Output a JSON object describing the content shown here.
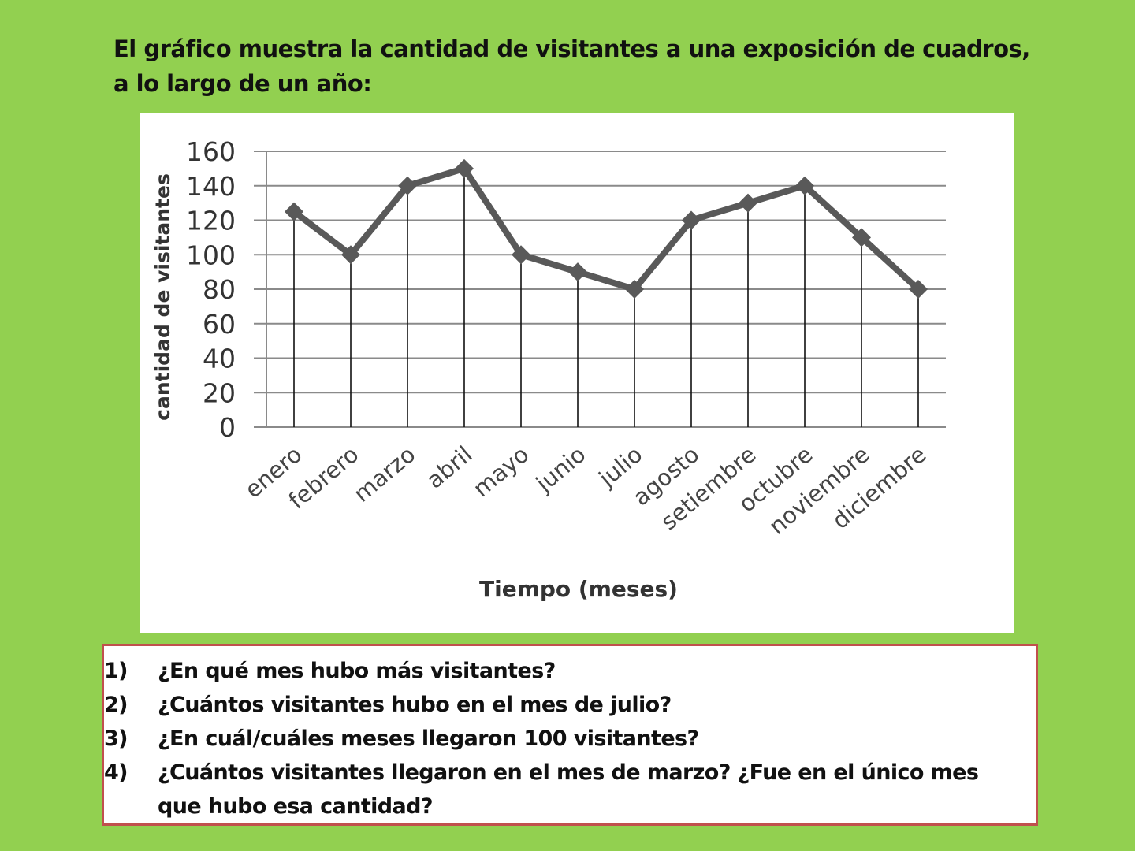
{
  "title": "El gráfico muestra la cantidad de visitantes a una exposición de cuadros, a lo largo de un año:",
  "chart_data": {
    "type": "line",
    "title": "",
    "xlabel": "Tiempo (meses)",
    "ylabel": "cantidad de visitantes",
    "categories": [
      "enero",
      "febrero",
      "marzo",
      "abril",
      "mayo",
      "junio",
      "julio",
      "agosto",
      "setiembre",
      "octubre",
      "noviembre",
      "diciembre"
    ],
    "values": [
      125,
      100,
      140,
      150,
      100,
      90,
      80,
      120,
      130,
      140,
      110,
      80
    ],
    "yticks": [
      "0",
      "20",
      "40",
      "60",
      "80",
      "100",
      "120",
      "140",
      "160"
    ],
    "ylim": [
      0,
      160
    ],
    "grid": true,
    "drop_lines": true,
    "marker": "diamond",
    "line_color": "#595959"
  },
  "questions": [
    {
      "num": "1)",
      "text": "¿En qué mes hubo más visitantes?"
    },
    {
      "num": "2)",
      "text": "¿Cuántos visitantes hubo en el mes de julio?"
    },
    {
      "num": "3)",
      "text": "¿En cuál/cuáles meses llegaron 100 visitantes?"
    },
    {
      "num": "4)",
      "text": "¿Cuántos visitantes llegaron en el mes de marzo? ¿Fue en el único mes que hubo esa cantidad?"
    }
  ]
}
